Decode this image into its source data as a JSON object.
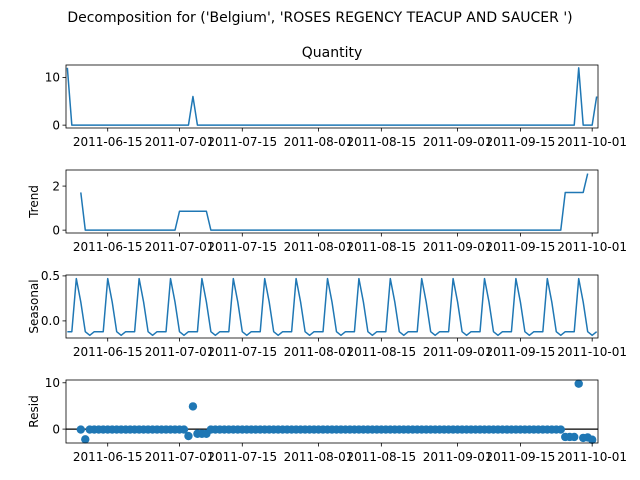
{
  "figure": {
    "suptitle": "Decomposition for ('Belgium', 'ROSES REGENCY TEACUP AND SAUCER ')"
  },
  "chart_data": [
    {
      "type": "line",
      "title": "Quantity",
      "ylabel": "",
      "x_start": "2011-06-06",
      "x_end": "2011-10-02",
      "x_ticks": [
        "2011-06-15",
        "2011-07-01",
        "2011-07-15",
        "2011-08-01",
        "2011-08-15",
        "2011-09-01",
        "2011-09-15",
        "2011-10-01"
      ],
      "y_ticks": [
        0,
        10
      ],
      "ylim": [
        -0.6,
        12.6
      ],
      "points": [
        {
          "x": "2011-06-06",
          "y": 12
        },
        {
          "x": "2011-06-07",
          "y": 0
        },
        {
          "x": "2011-07-03",
          "y": 0
        },
        {
          "x": "2011-07-04",
          "y": 6
        },
        {
          "x": "2011-07-05",
          "y": 0
        },
        {
          "x": "2011-09-27",
          "y": 0
        },
        {
          "x": "2011-09-28",
          "y": 12
        },
        {
          "x": "2011-09-29",
          "y": 0
        },
        {
          "x": "2011-10-01",
          "y": 0
        },
        {
          "x": "2011-10-02",
          "y": 6
        }
      ]
    },
    {
      "type": "line",
      "title": "",
      "ylabel": "Trend",
      "x_start": "2011-06-06",
      "x_end": "2011-10-02",
      "x_ticks": [
        "2011-06-15",
        "2011-07-01",
        "2011-07-15",
        "2011-08-01",
        "2011-08-15",
        "2011-09-01",
        "2011-09-15",
        "2011-10-01"
      ],
      "y_ticks": [
        0,
        2
      ],
      "ylim": [
        -0.13,
        2.73
      ],
      "points": [
        {
          "x": "2011-06-09",
          "y": 1.71
        },
        {
          "x": "2011-06-10",
          "y": 0
        },
        {
          "x": "2011-06-30",
          "y": 0
        },
        {
          "x": "2011-07-01",
          "y": 0.857
        },
        {
          "x": "2011-07-07",
          "y": 0.857
        },
        {
          "x": "2011-07-08",
          "y": 0
        },
        {
          "x": "2011-09-24",
          "y": 0
        },
        {
          "x": "2011-09-25",
          "y": 1.71
        },
        {
          "x": "2011-09-29",
          "y": 1.71
        },
        {
          "x": "2011-09-30",
          "y": 2.57
        }
      ]
    },
    {
      "type": "line",
      "title": "",
      "ylabel": "Seasonal",
      "x_start": "2011-06-06",
      "x_end": "2011-10-02",
      "x_ticks": [
        "2011-06-15",
        "2011-07-01",
        "2011-07-15",
        "2011-08-01",
        "2011-08-15",
        "2011-09-01",
        "2011-09-15",
        "2011-10-01"
      ],
      "y_ticks": [
        0.0,
        0.5
      ],
      "y_tick_labels": [
        "0.0",
        "0.5"
      ],
      "ylim": [
        -0.19,
        0.51
      ],
      "period": 7,
      "anchor_date": "2011-06-06",
      "pattern": [
        -0.12,
        -0.12,
        0.47,
        0.21,
        -0.12,
        -0.16,
        -0.12
      ]
    },
    {
      "type": "scatter",
      "title": "",
      "ylabel": "Resid",
      "x_start": "2011-06-06",
      "x_end": "2011-10-02",
      "x_ticks": [
        "2011-06-15",
        "2011-07-01",
        "2011-07-15",
        "2011-08-01",
        "2011-08-15",
        "2011-09-01",
        "2011-09-15",
        "2011-10-01"
      ],
      "y_ticks": [
        0,
        10
      ],
      "ylim": [
        -3,
        10.6
      ],
      "default_value": -0.1,
      "special": [
        {
          "x": "2011-06-10",
          "y": -2.2
        },
        {
          "x": "2011-07-04",
          "y": 4.9
        },
        {
          "x": "2011-07-03",
          "y": -1.5
        },
        {
          "x": "2011-07-05",
          "y": -1.0
        },
        {
          "x": "2011-07-06",
          "y": -1.0
        },
        {
          "x": "2011-07-07",
          "y": -1.0
        },
        {
          "x": "2011-09-25",
          "y": -1.7
        },
        {
          "x": "2011-09-26",
          "y": -1.7
        },
        {
          "x": "2011-09-27",
          "y": -1.7
        },
        {
          "x": "2011-09-28",
          "y": 9.8
        },
        {
          "x": "2011-09-29",
          "y": -1.9
        },
        {
          "x": "2011-09-30",
          "y": -1.8
        },
        {
          "x": "2011-10-01",
          "y": -2.3
        }
      ]
    }
  ]
}
